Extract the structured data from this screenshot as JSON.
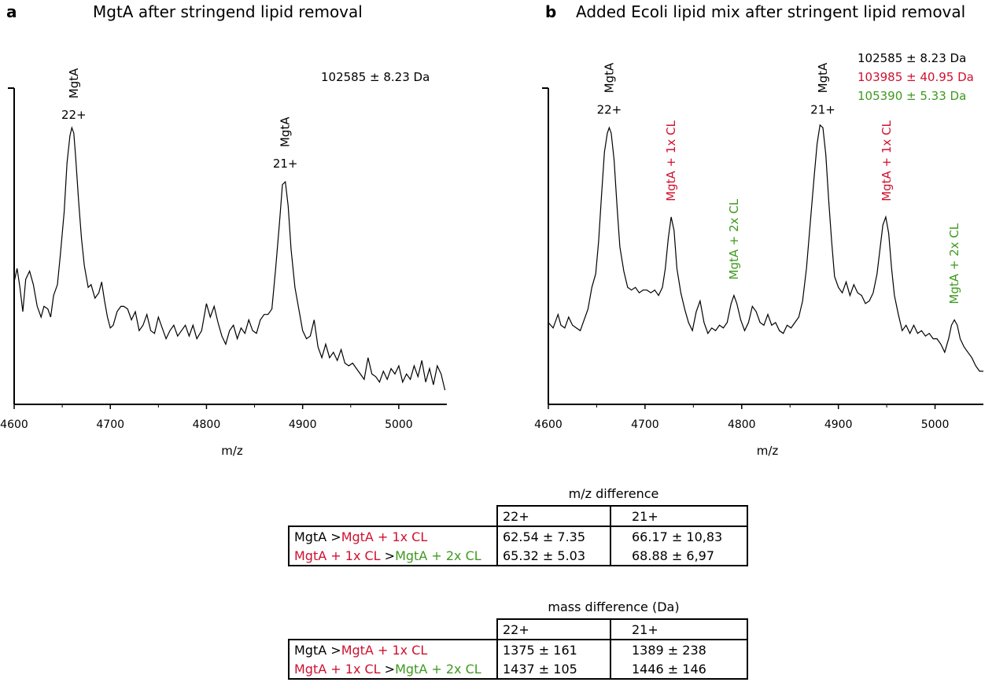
{
  "colors": {
    "black": "#000000",
    "red": "#d0102e",
    "green": "#3e9a1f"
  },
  "chart_data": [
    {
      "type": "line",
      "panel_letter": "a",
      "title": "MgtA after stringend lipid removal",
      "xlabel": "m/z",
      "ylabel": "",
      "xlim": [
        4600,
        5050
      ],
      "ylim": [
        0,
        1
      ],
      "x_ticks": [
        4600,
        4700,
        4800,
        4900,
        5000
      ],
      "y_ticks_labeled": false,
      "series": [
        {
          "color": "#000000",
          "x": [
            4600,
            4603,
            4606,
            4609,
            4612,
            4616,
            4620,
            4624,
            4628,
            4631,
            4635,
            4638,
            4641,
            4645,
            4648,
            4652,
            4655,
            4658,
            4660,
            4662,
            4664,
            4667,
            4670,
            4673,
            4677,
            4680,
            4684,
            4688,
            4691,
            4694,
            4697,
            4700,
            4703,
            4707,
            4711,
            4714,
            4718,
            4722,
            4726,
            4730,
            4734,
            4738,
            4742,
            4746,
            4750,
            4754,
            4758,
            4762,
            4766,
            4770,
            4774,
            4778,
            4782,
            4786,
            4790,
            4795,
            4800,
            4804,
            4808,
            4812,
            4816,
            4820,
            4824,
            4828,
            4832,
            4836,
            4840,
            4844,
            4848,
            4852,
            4856,
            4860,
            4864,
            4868,
            4872,
            4876,
            4879,
            4882,
            4885,
            4888,
            4892,
            4896,
            4900,
            4904,
            4908,
            4912,
            4916,
            4920,
            4924,
            4928,
            4932,
            4936,
            4940,
            4944,
            4948,
            4952,
            4956,
            4960,
            4964,
            4968,
            4972,
            4976,
            4980,
            4984,
            4988,
            4992,
            4996,
            5000,
            5004,
            5008,
            5012,
            5016,
            5020,
            5024,
            5028,
            5032,
            5036,
            5040,
            5044,
            5048
          ],
          "y": [
            0.4,
            0.45,
            0.38,
            0.29,
            0.41,
            0.44,
            0.39,
            0.31,
            0.27,
            0.31,
            0.3,
            0.27,
            0.35,
            0.39,
            0.5,
            0.66,
            0.84,
            0.94,
            0.97,
            0.95,
            0.86,
            0.7,
            0.56,
            0.46,
            0.38,
            0.39,
            0.34,
            0.36,
            0.4,
            0.33,
            0.27,
            0.23,
            0.24,
            0.29,
            0.31,
            0.31,
            0.3,
            0.26,
            0.29,
            0.22,
            0.24,
            0.28,
            0.22,
            0.21,
            0.27,
            0.23,
            0.19,
            0.22,
            0.24,
            0.2,
            0.22,
            0.24,
            0.2,
            0.24,
            0.19,
            0.22,
            0.32,
            0.27,
            0.31,
            0.25,
            0.2,
            0.17,
            0.22,
            0.24,
            0.19,
            0.23,
            0.21,
            0.26,
            0.22,
            0.21,
            0.26,
            0.28,
            0.28,
            0.3,
            0.45,
            0.62,
            0.76,
            0.77,
            0.68,
            0.52,
            0.38,
            0.3,
            0.22,
            0.19,
            0.2,
            0.26,
            0.16,
            0.12,
            0.17,
            0.12,
            0.14,
            0.11,
            0.15,
            0.1,
            0.09,
            0.1,
            0.08,
            0.06,
            0.04,
            0.12,
            0.06,
            0.05,
            0.03,
            0.07,
            0.04,
            0.08,
            0.06,
            0.09,
            0.03,
            0.06,
            0.04,
            0.09,
            0.05,
            0.11,
            0.03,
            0.08,
            0.02,
            0.09,
            0.06,
            0.0
          ]
        }
      ],
      "peak_labels": [
        {
          "x": 4662,
          "label": "MgtA",
          "charge": "22+",
          "color": "#000000"
        },
        {
          "x": 4882,
          "label": "MgtA",
          "charge": "21+",
          "color": "#000000"
        }
      ],
      "annotations": [
        {
          "text": "102585 ± 8.23 Da",
          "color": "#000000"
        }
      ]
    },
    {
      "type": "line",
      "panel_letter": "b",
      "title": "Added Ecoli lipid mix after stringent lipid removal",
      "xlabel": "m/z",
      "ylabel": "",
      "xlim": [
        4600,
        5050
      ],
      "ylim": [
        0,
        1
      ],
      "x_ticks": [
        4600,
        4700,
        4800,
        4900,
        5000
      ],
      "y_ticks_labeled": false,
      "series": [
        {
          "color": "#000000",
          "x": [
            4600,
            4605,
            4610,
            4613,
            4617,
            4621,
            4625,
            4629,
            4633,
            4637,
            4641,
            4645,
            4649,
            4652,
            4655,
            4658,
            4661,
            4663,
            4665,
            4668,
            4671,
            4674,
            4678,
            4682,
            4686,
            4690,
            4694,
            4698,
            4702,
            4706,
            4710,
            4714,
            4718,
            4721,
            4724,
            4727,
            4730,
            4733,
            4737,
            4741,
            4745,
            4749,
            4753,
            4757,
            4761,
            4765,
            4769,
            4773,
            4777,
            4781,
            4785,
            4789,
            4792,
            4795,
            4799,
            4803,
            4807,
            4811,
            4815,
            4819,
            4823,
            4827,
            4831,
            4835,
            4839,
            4843,
            4847,
            4851,
            4855,
            4859,
            4863,
            4867,
            4871,
            4875,
            4878,
            4881,
            4884,
            4887,
            4890,
            4893,
            4896,
            4900,
            4904,
            4908,
            4912,
            4916,
            4920,
            4924,
            4928,
            4932,
            4936,
            4940,
            4943,
            4946,
            4949,
            4952,
            4955,
            4958,
            4962,
            4966,
            4970,
            4974,
            4978,
            4982,
            4986,
            4990,
            4994,
            4998,
            5002,
            5006,
            5010,
            5014,
            5017,
            5020,
            5023,
            5026,
            5030,
            5034,
            5038,
            5042,
            5046,
            5050
          ],
          "y": [
            0.25,
            0.23,
            0.28,
            0.24,
            0.23,
            0.27,
            0.24,
            0.23,
            0.22,
            0.26,
            0.3,
            0.38,
            0.43,
            0.55,
            0.72,
            0.88,
            0.95,
            0.97,
            0.95,
            0.85,
            0.68,
            0.53,
            0.44,
            0.38,
            0.37,
            0.38,
            0.36,
            0.37,
            0.37,
            0.36,
            0.37,
            0.35,
            0.38,
            0.45,
            0.56,
            0.64,
            0.59,
            0.45,
            0.36,
            0.3,
            0.25,
            0.22,
            0.29,
            0.33,
            0.25,
            0.21,
            0.23,
            0.22,
            0.24,
            0.23,
            0.25,
            0.32,
            0.35,
            0.32,
            0.26,
            0.22,
            0.25,
            0.31,
            0.29,
            0.25,
            0.24,
            0.28,
            0.24,
            0.25,
            0.22,
            0.21,
            0.24,
            0.23,
            0.25,
            0.27,
            0.33,
            0.45,
            0.62,
            0.79,
            0.91,
            0.98,
            0.97,
            0.87,
            0.7,
            0.55,
            0.42,
            0.38,
            0.36,
            0.4,
            0.35,
            0.39,
            0.36,
            0.35,
            0.32,
            0.33,
            0.36,
            0.43,
            0.52,
            0.61,
            0.64,
            0.58,
            0.45,
            0.35,
            0.28,
            0.22,
            0.24,
            0.21,
            0.24,
            0.21,
            0.22,
            0.2,
            0.21,
            0.19,
            0.19,
            0.17,
            0.14,
            0.19,
            0.24,
            0.26,
            0.24,
            0.19,
            0.16,
            0.14,
            0.12,
            0.09,
            0.07,
            0.07
          ]
        }
      ],
      "peak_labels": [
        {
          "x": 4663,
          "label": "MgtA",
          "charge": "22+",
          "color": "#000000"
        },
        {
          "x": 4727,
          "label": "MgtA + 1x CL",
          "color": "#d0102e"
        },
        {
          "x": 4792,
          "label": "MgtA + 2x CL",
          "color": "#3e9a1f"
        },
        {
          "x": 4884,
          "label": "MgtA",
          "charge": "21+",
          "color": "#000000"
        },
        {
          "x": 4950,
          "label": "MgtA + 1x CL",
          "color": "#d0102e"
        },
        {
          "x": 5020,
          "label": "MgtA + 2x CL",
          "color": "#3e9a1f"
        }
      ],
      "annotations": [
        {
          "text": "102585 ± 8.23 Da",
          "color": "#000000"
        },
        {
          "text": "103985 ± 40.95 Da",
          "color": "#d0102e"
        },
        {
          "text": "105390 ± 5.33 Da",
          "color": "#3e9a1f"
        }
      ]
    }
  ],
  "tables": [
    {
      "caption": "m/z difference",
      "columns": [
        "22+",
        "21+"
      ],
      "rows": [
        {
          "from": "MgtA",
          "sep": " >",
          "to": "MgtA + 1x CL",
          "from_color": "#000000",
          "to_color": "#d0102e",
          "v22": "62.54 ± 7.35",
          "v21": "66.17 ± 10,83"
        },
        {
          "from": "MgtA + 1x CL",
          "sep": " >",
          "to": "MgtA + 2x CL",
          "from_color": "#d0102e",
          "to_color": "#3e9a1f",
          "v22": "65.32 ± 5.03",
          "v21": "68.88 ± 6,97"
        }
      ]
    },
    {
      "caption": "mass difference (Da)",
      "columns": [
        "22+",
        "21+"
      ],
      "rows": [
        {
          "from": "MgtA",
          "sep": " >",
          "to": "MgtA + 1x CL",
          "from_color": "#000000",
          "to_color": "#d0102e",
          "v22": "1375 ± 161",
          "v21": "1389 ± 238"
        },
        {
          "from": "MgtA + 1x CL",
          "sep": " >",
          "to": "MgtA + 2x CL",
          "from_color": "#d0102e",
          "to_color": "#3e9a1f",
          "v22": "1437 ± 105",
          "v21": "1446 ± 146"
        }
      ]
    }
  ]
}
